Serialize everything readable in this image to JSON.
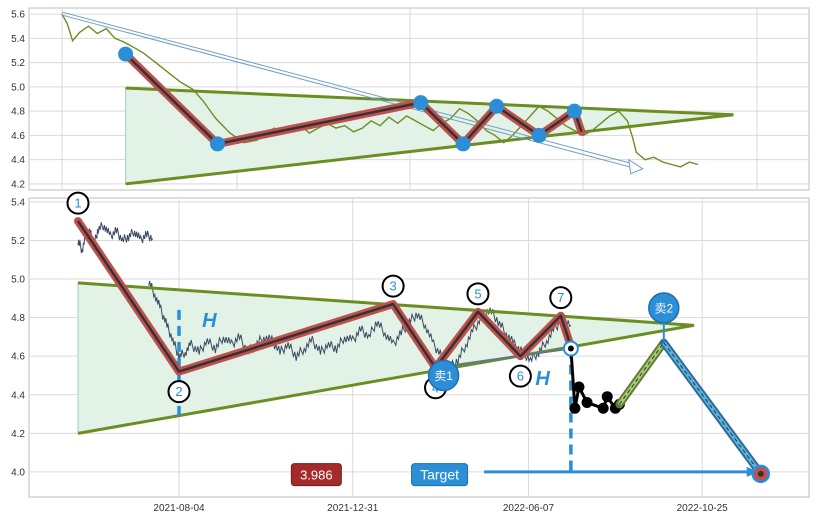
{
  "colors": {
    "price_top": "#6b8e23",
    "price_bottom": "#3b4a63",
    "triangle_line": "#6b8e23",
    "triangle_fill": "#e3f2e6",
    "zigzag_outer": "#c0504d",
    "zigzag_inner": "#333333",
    "pivot_blue": "#2b8ed6",
    "dashed_blue": "#2b8ed6",
    "badge_red": "#a52a2a",
    "badge_blue": "#2b8ed6"
  },
  "chart_data": [
    {
      "type": "line",
      "panel": "top",
      "ylim": [
        4.15,
        5.65
      ],
      "yticks": [
        4.2,
        4.4,
        4.6,
        4.8,
        5.0,
        5.2,
        5.4,
        5.6
      ],
      "ytick_labels": [
        "4.2",
        "4.4",
        "4.6",
        "4.8",
        "5.0",
        "5.2",
        "5.4",
        "5.6"
      ],
      "grid": true,
      "price_points": [
        [
          0,
          5.6
        ],
        [
          0.3,
          5.52
        ],
        [
          0.6,
          5.38
        ],
        [
          1,
          5.45
        ],
        [
          1.5,
          5.5
        ],
        [
          2,
          5.44
        ],
        [
          2.5,
          5.48
        ],
        [
          3,
          5.4
        ],
        [
          3.5,
          5.37
        ],
        [
          4,
          5.33
        ],
        [
          4.6,
          5.28
        ],
        [
          5.3,
          5.2
        ],
        [
          6,
          5.12
        ],
        [
          6.7,
          5.04
        ],
        [
          7.4,
          4.98
        ],
        [
          8,
          4.88
        ],
        [
          8.7,
          4.74
        ],
        [
          9.5,
          4.62
        ],
        [
          10.3,
          4.54
        ],
        [
          11,
          4.56
        ],
        [
          11.5,
          4.6
        ],
        [
          12,
          4.66
        ],
        [
          12.5,
          4.62
        ],
        [
          13,
          4.65
        ],
        [
          13.5,
          4.68
        ],
        [
          14,
          4.62
        ],
        [
          14.5,
          4.66
        ],
        [
          15,
          4.7
        ],
        [
          15.5,
          4.66
        ],
        [
          16,
          4.68
        ],
        [
          16.5,
          4.63
        ],
        [
          17,
          4.66
        ],
        [
          17.5,
          4.72
        ],
        [
          18,
          4.68
        ],
        [
          18.5,
          4.75
        ],
        [
          19,
          4.7
        ],
        [
          19.5,
          4.76
        ],
        [
          20,
          4.72
        ],
        [
          20.5,
          4.68
        ],
        [
          21,
          4.64
        ],
        [
          21.5,
          4.7
        ],
        [
          22,
          4.74
        ],
        [
          22.5,
          4.82
        ],
        [
          23,
          4.78
        ],
        [
          23.5,
          4.72
        ],
        [
          24,
          4.64
        ],
        [
          24.5,
          4.6
        ],
        [
          25,
          4.54
        ],
        [
          25.5,
          4.6
        ],
        [
          26,
          4.68
        ],
        [
          26.5,
          4.76
        ],
        [
          27,
          4.84
        ],
        [
          27.5,
          4.8
        ],
        [
          28,
          4.74
        ],
        [
          28.5,
          4.68
        ],
        [
          29,
          4.64
        ],
        [
          29.5,
          4.6
        ],
        [
          30,
          4.64
        ],
        [
          30.5,
          4.7
        ],
        [
          31,
          4.76
        ],
        [
          31.5,
          4.8
        ],
        [
          32,
          4.72
        ],
        [
          32.3,
          4.58
        ],
        [
          32.5,
          4.46
        ],
        [
          33,
          4.4
        ],
        [
          33.5,
          4.42
        ],
        [
          34,
          4.38
        ],
        [
          34.5,
          4.36
        ],
        [
          35,
          4.34
        ],
        [
          35.5,
          4.38
        ],
        [
          36,
          4.36
        ]
      ],
      "zigzag": [
        [
          3.6,
          5.27
        ],
        [
          8.8,
          4.53
        ],
        [
          20.3,
          4.87
        ],
        [
          22.7,
          4.53
        ],
        [
          24.6,
          4.84
        ],
        [
          27.0,
          4.6
        ],
        [
          29.0,
          4.8
        ],
        [
          29.4,
          4.63
        ]
      ],
      "pivots": [
        [
          3.6,
          5.27
        ],
        [
          8.8,
          4.53
        ],
        [
          20.3,
          4.87
        ],
        [
          22.7,
          4.53
        ],
        [
          24.6,
          4.84
        ],
        [
          27.0,
          4.6
        ],
        [
          29.0,
          4.8
        ]
      ],
      "triangle_upper": [
        [
          3.6,
          4.99
        ],
        [
          38,
          4.77
        ]
      ],
      "triangle_lower": [
        [
          3.6,
          4.2
        ],
        [
          38,
          4.77
        ]
      ],
      "arrow": {
        "from": [
          0,
          5.6
        ],
        "to": [
          32.3,
          4.35
        ]
      }
    },
    {
      "type": "line",
      "panel": "bottom",
      "ylim": [
        3.87,
        5.42
      ],
      "yticks": [
        4.0,
        4.2,
        4.4,
        4.6,
        4.8,
        5.0,
        5.2,
        5.4
      ],
      "ytick_labels": [
        "4.0",
        "4.2",
        "4.4",
        "4.6",
        "4.8",
        "5.0",
        "5.2",
        "5.4"
      ],
      "x_tick_positions": [
        5.0,
        13.6,
        22.3,
        30.9
      ],
      "x_tick_labels": [
        "2021-08-04",
        "2021-12-31",
        "2022-06-07",
        "2022-10-25"
      ],
      "grid": true,
      "price_points": [
        [
          0,
          5.2
        ],
        [
          0.2,
          5.15
        ],
        [
          0.4,
          5.23
        ],
        [
          0.6,
          5.24
        ],
        [
          0.8,
          5.18
        ],
        [
          1.0,
          5.26
        ],
        [
          1.3,
          5.28
        ],
        [
          1.6,
          5.22
        ],
        [
          1.9,
          5.25
        ],
        [
          2.2,
          5.2
        ],
        [
          2.5,
          5.22
        ],
        [
          2.8,
          5.25
        ],
        [
          3.1,
          5.2
        ],
        [
          3.4,
          5.23
        ],
        [
          3.7,
          5.21
        ]
      ],
      "price_points_b": [
        [
          3.5,
          4.99
        ],
        [
          3.8,
          4.92
        ],
        [
          4.1,
          4.84
        ],
        [
          4.4,
          4.76
        ],
        [
          4.7,
          4.68
        ],
        [
          5.0,
          4.6
        ],
        [
          5.3,
          4.62
        ],
        [
          5.6,
          4.66
        ],
        [
          6.0,
          4.62
        ],
        [
          6.4,
          4.68
        ],
        [
          6.8,
          4.64
        ],
        [
          7.2,
          4.7
        ],
        [
          7.6,
          4.66
        ],
        [
          8.0,
          4.7
        ],
        [
          8.4,
          4.62
        ],
        [
          8.8,
          4.66
        ],
        [
          9.2,
          4.7
        ],
        [
          9.6,
          4.68
        ],
        [
          10,
          4.62
        ],
        [
          10.4,
          4.66
        ],
        [
          10.8,
          4.6
        ],
        [
          11.2,
          4.64
        ],
        [
          11.6,
          4.68
        ],
        [
          12,
          4.62
        ],
        [
          12.4,
          4.66
        ],
        [
          12.8,
          4.64
        ],
        [
          13.2,
          4.7
        ],
        [
          13.6,
          4.68
        ],
        [
          14,
          4.74
        ],
        [
          14.4,
          4.7
        ],
        [
          14.8,
          4.78
        ],
        [
          15.2,
          4.72
        ],
        [
          15.6,
          4.66
        ],
        [
          16,
          4.72
        ],
        [
          16.4,
          4.78
        ],
        [
          16.8,
          4.82
        ],
        [
          17.2,
          4.76
        ],
        [
          17.6,
          4.66
        ],
        [
          18,
          4.6
        ],
        [
          18.4,
          4.54
        ],
        [
          18.8,
          4.58
        ],
        [
          19.2,
          4.66
        ],
        [
          19.6,
          4.74
        ],
        [
          20,
          4.8
        ],
        [
          20.4,
          4.84
        ],
        [
          20.8,
          4.78
        ],
        [
          21.2,
          4.72
        ],
        [
          21.6,
          4.66
        ],
        [
          22,
          4.62
        ],
        [
          22.4,
          4.58
        ],
        [
          22.8,
          4.62
        ],
        [
          23.2,
          4.68
        ],
        [
          23.6,
          4.74
        ],
        [
          24.0,
          4.8
        ],
        [
          24.4,
          4.76
        ]
      ],
      "zigzag": [
        [
          0.0,
          5.3
        ],
        [
          5.0,
          4.52
        ],
        [
          15.6,
          4.87
        ],
        [
          17.7,
          4.54
        ],
        [
          19.8,
          4.83
        ],
        [
          21.9,
          4.6
        ],
        [
          23.9,
          4.81
        ],
        [
          24.4,
          4.65
        ]
      ],
      "pivot_labels": [
        {
          "x": 0.0,
          "y": 5.3,
          "text": "1",
          "pos": "above"
        },
        {
          "x": 5.0,
          "y": 4.52,
          "text": "2",
          "pos": "below"
        },
        {
          "x": 15.6,
          "y": 4.87,
          "text": "3",
          "pos": "above"
        },
        {
          "x": 17.7,
          "y": 4.54,
          "text": "4",
          "pos": "below"
        },
        {
          "x": 19.8,
          "y": 4.83,
          "text": "5",
          "pos": "above"
        },
        {
          "x": 21.9,
          "y": 4.6,
          "text": "6",
          "pos": "below"
        },
        {
          "x": 23.9,
          "y": 4.81,
          "text": "7",
          "pos": "above"
        }
      ],
      "triangle_upper": [
        [
          0.0,
          4.98
        ],
        [
          30.5,
          4.76
        ]
      ],
      "triangle_lower": [
        [
          0.0,
          4.2
        ],
        [
          30.5,
          4.76
        ]
      ],
      "breakout_line": [
        [
          17.7,
          4.54
        ],
        [
          24.4,
          4.64
        ]
      ],
      "sell_points": [
        {
          "x": 18.1,
          "y": 4.5,
          "text": "卖1"
        },
        {
          "x": 29.0,
          "y": 4.85,
          "text": "卖2"
        }
      ],
      "post_breakout": [
        [
          24.4,
          4.64
        ],
        [
          24.6,
          4.33
        ],
        [
          24.8,
          4.44
        ],
        [
          25.2,
          4.36
        ],
        [
          26.0,
          4.33
        ],
        [
          26.2,
          4.39
        ],
        [
          26.6,
          4.33
        ],
        [
          26.8,
          4.35
        ]
      ],
      "projection_green": [
        [
          26.8,
          4.35
        ],
        [
          29.0,
          4.67
        ]
      ],
      "projection_blue": [
        [
          29.0,
          4.67
        ],
        [
          33.8,
          3.99
        ]
      ],
      "h_marker_1": {
        "x": 5.0,
        "y_from": 4.84,
        "y_to": 4.29,
        "label": "H",
        "label_pos": [
          6.5,
          4.75
        ]
      },
      "h_marker_2": {
        "x": 24.4,
        "y_from": 4.64,
        "y_to": 4.0,
        "label": "H",
        "label_pos": [
          23.0,
          4.45
        ]
      },
      "target_line": [
        [
          20.1,
          4.0
        ],
        [
          33.5,
          4.0
        ]
      ],
      "target_point": [
        33.8,
        3.99
      ],
      "target_value_label": {
        "text": "3.986",
        "x": 11.8,
        "y": 3.986
      },
      "target_label": {
        "text": "Target",
        "x": 17.9,
        "y": 3.986
      }
    }
  ]
}
